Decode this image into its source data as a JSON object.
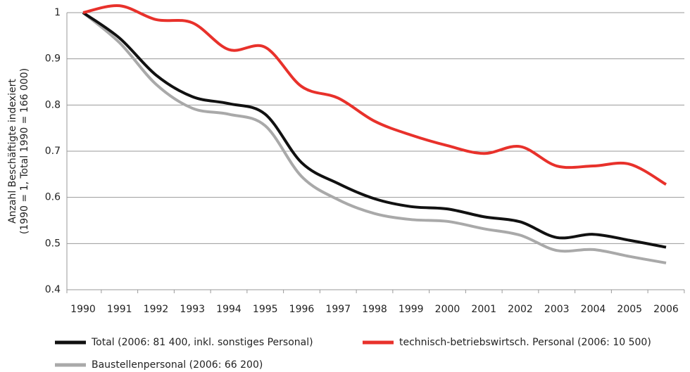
{
  "chart_data": {
    "type": "line",
    "ylabel": [
      "Anzahl Beschäftigte indexiert",
      "(1990 = 1, Total 1990 = 166 000)"
    ],
    "categories": [
      "1990",
      "1991",
      "1992",
      "1993",
      "1994",
      "1995",
      "1996",
      "1997",
      "1998",
      "1999",
      "2000",
      "2001",
      "2002",
      "2003",
      "2004",
      "2005",
      "2006"
    ],
    "series": [
      {
        "name": "Total (2006: 81 400, inkl. sonstiges Personal)",
        "color": "#111111",
        "values": [
          1.0,
          0.945,
          0.865,
          0.818,
          0.803,
          0.78,
          0.675,
          0.63,
          0.597,
          0.58,
          0.575,
          0.558,
          0.547,
          0.513,
          0.52,
          0.507,
          0.492
        ]
      },
      {
        "name": "technisch-betriebswirtsch. Personal (2006: 10 500)",
        "color": "#e8312b",
        "values": [
          1.0,
          1.015,
          0.985,
          0.978,
          0.92,
          0.925,
          0.84,
          0.815,
          0.765,
          0.735,
          0.712,
          0.695,
          0.71,
          0.668,
          0.668,
          0.672,
          0.628
        ]
      },
      {
        "name": "Baustellenpersonal (2006: 66 200)",
        "color": "#a9a9a9",
        "values": [
          1.0,
          0.935,
          0.845,
          0.793,
          0.78,
          0.755,
          0.645,
          0.595,
          0.565,
          0.552,
          0.548,
          0.532,
          0.518,
          0.485,
          0.487,
          0.472,
          0.458
        ]
      }
    ],
    "ylim": [
      0.4,
      1
    ],
    "yticks": [
      0.4,
      0.5,
      0.6,
      0.7,
      0.8,
      0.9,
      1
    ],
    "grid": true,
    "legend": "bottom"
  }
}
